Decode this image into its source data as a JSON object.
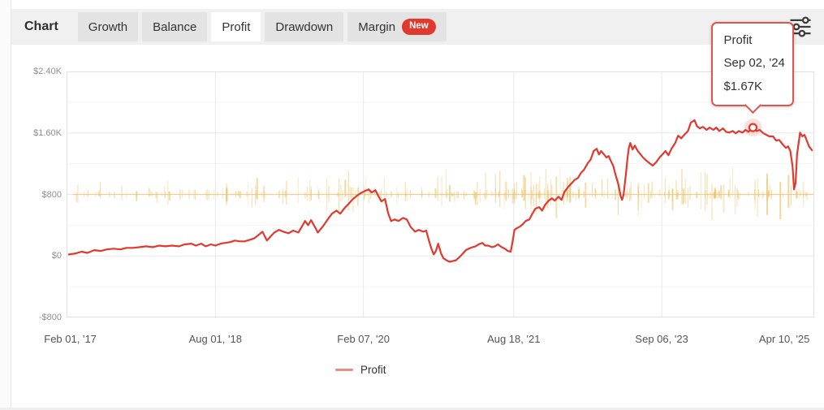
{
  "tabs_bar": {
    "section_label": "Chart",
    "tabs": [
      {
        "label": "Growth",
        "active": false
      },
      {
        "label": "Balance",
        "active": false
      },
      {
        "label": "Profit",
        "active": true
      },
      {
        "label": "Drawdown",
        "active": false
      },
      {
        "label": "Margin",
        "active": false,
        "badge": "New"
      }
    ]
  },
  "tooltip": {
    "series_label": "Profit",
    "date": "Sep 02, '24",
    "value": "$1.67K"
  },
  "legend": {
    "label": "Profit",
    "swatch_color": "#ef8a80"
  },
  "colors": {
    "line": "#e0392e",
    "tooltip_border": "#dc564e",
    "badge_bg": "#e0392e",
    "tab_bar_bg": "#f0f0f0",
    "tab_bg": "#e3e3e3",
    "tab_active_bg": "#ffffff",
    "grid_major": "#e8e8e8",
    "grid_minor": "#f4f4f4",
    "plot_border": "#e2e2e2",
    "volume_bars": "#e9be5f",
    "baseline_peach": "#f2c478",
    "icon": "#3c3c3c"
  },
  "chart_data": {
    "type": "line",
    "title": "",
    "xlabel": "",
    "ylabel": "",
    "ylim": [
      -800,
      2400
    ],
    "grid": true,
    "legend_position": "bottom",
    "y_ticks": [
      {
        "label": "$2.40K",
        "value": 2400
      },
      {
        "label": "$1.60K",
        "value": 1600
      },
      {
        "label": "$800",
        "value": 800
      },
      {
        "label": "$0",
        "value": 0
      },
      {
        "label": "-$800",
        "value": -800
      }
    ],
    "y_minor": [
      2000,
      1200,
      400,
      -400
    ],
    "x_ticks": [
      {
        "label": "Feb 01, '17",
        "pos": 0.005
      },
      {
        "label": "Aug 01, '18",
        "pos": 0.199
      },
      {
        "label": "Feb 07, '20",
        "pos": 0.397
      },
      {
        "label": "Aug 18, '21",
        "pos": 0.598
      },
      {
        "label": "Sep 06, '23",
        "pos": 0.796
      },
      {
        "label": "Apr 10, '25",
        "pos": 0.96
      }
    ],
    "x_grid": [
      0.199,
      0.397,
      0.598,
      0.796
    ],
    "marker": {
      "x": 0.918,
      "value": 1670,
      "date": "Sep 02, '24",
      "display": "$1.67K"
    },
    "series": [
      {
        "name": "Profit",
        "color": "#e0392e",
        "points": [
          [
            0.003,
            20
          ],
          [
            0.011,
            30
          ],
          [
            0.02,
            55
          ],
          [
            0.028,
            40
          ],
          [
            0.037,
            75
          ],
          [
            0.046,
            65
          ],
          [
            0.054,
            85
          ],
          [
            0.063,
            95
          ],
          [
            0.072,
            85
          ],
          [
            0.08,
            105
          ],
          [
            0.089,
            105
          ],
          [
            0.098,
            115
          ],
          [
            0.106,
            125
          ],
          [
            0.115,
            115
          ],
          [
            0.124,
            135
          ],
          [
            0.132,
            125
          ],
          [
            0.141,
            135
          ],
          [
            0.15,
            125
          ],
          [
            0.158,
            150
          ],
          [
            0.167,
            160
          ],
          [
            0.173,
            135
          ],
          [
            0.18,
            160
          ],
          [
            0.186,
            125
          ],
          [
            0.193,
            150
          ],
          [
            0.199,
            135
          ],
          [
            0.206,
            160
          ],
          [
            0.212,
            170
          ],
          [
            0.219,
            180
          ],
          [
            0.225,
            200
          ],
          [
            0.232,
            190
          ],
          [
            0.238,
            190
          ],
          [
            0.245,
            210
          ],
          [
            0.251,
            230
          ],
          [
            0.257,
            275
          ],
          [
            0.262,
            315
          ],
          [
            0.268,
            200
          ],
          [
            0.273,
            255
          ],
          [
            0.278,
            305
          ],
          [
            0.284,
            340
          ],
          [
            0.29,
            315
          ],
          [
            0.297,
            295
          ],
          [
            0.303,
            330
          ],
          [
            0.31,
            305
          ],
          [
            0.314,
            370
          ],
          [
            0.319,
            455
          ],
          [
            0.323,
            400
          ],
          [
            0.327,
            465
          ],
          [
            0.332,
            380
          ],
          [
            0.336,
            305
          ],
          [
            0.34,
            350
          ],
          [
            0.344,
            400
          ],
          [
            0.35,
            485
          ],
          [
            0.355,
            550
          ],
          [
            0.361,
            590
          ],
          [
            0.366,
            550
          ],
          [
            0.372,
            625
          ],
          [
            0.377,
            675
          ],
          [
            0.382,
            730
          ],
          [
            0.388,
            780
          ],
          [
            0.393,
            815
          ],
          [
            0.399,
            845
          ],
          [
            0.404,
            865
          ],
          [
            0.408,
            825
          ],
          [
            0.413,
            855
          ],
          [
            0.417,
            780
          ],
          [
            0.421,
            710
          ],
          [
            0.426,
            740
          ],
          [
            0.43,
            560
          ],
          [
            0.434,
            455
          ],
          [
            0.439,
            475
          ],
          [
            0.444,
            455
          ],
          [
            0.45,
            495
          ],
          [
            0.455,
            475
          ],
          [
            0.46,
            380
          ],
          [
            0.466,
            315
          ],
          [
            0.471,
            340
          ],
          [
            0.477,
            315
          ],
          [
            0.481,
            330
          ],
          [
            0.484,
            220
          ],
          [
            0.488,
            95
          ],
          [
            0.491,
            20
          ],
          [
            0.494,
            65
          ],
          [
            0.497,
            160
          ],
          [
            0.501,
            30
          ],
          [
            0.504,
            -30
          ],
          [
            0.508,
            -55
          ],
          [
            0.512,
            -75
          ],
          [
            0.517,
            -65
          ],
          [
            0.521,
            -55
          ],
          [
            0.525,
            -20
          ],
          [
            0.53,
            30
          ],
          [
            0.534,
            75
          ],
          [
            0.538,
            95
          ],
          [
            0.543,
            115
          ],
          [
            0.547,
            125
          ],
          [
            0.551,
            150
          ],
          [
            0.556,
            170
          ],
          [
            0.56,
            135
          ],
          [
            0.564,
            135
          ],
          [
            0.569,
            115
          ],
          [
            0.573,
            125
          ],
          [
            0.577,
            150
          ],
          [
            0.582,
            115
          ],
          [
            0.586,
            95
          ],
          [
            0.59,
            65
          ],
          [
            0.594,
            55
          ],
          [
            0.597,
            210
          ],
          [
            0.599,
            340
          ],
          [
            0.602,
            360
          ],
          [
            0.606,
            380
          ],
          [
            0.61,
            410
          ],
          [
            0.614,
            455
          ],
          [
            0.619,
            475
          ],
          [
            0.623,
            550
          ],
          [
            0.627,
            615
          ],
          [
            0.632,
            635
          ],
          [
            0.636,
            590
          ],
          [
            0.64,
            665
          ],
          [
            0.645,
            720
          ],
          [
            0.649,
            750
          ],
          [
            0.653,
            720
          ],
          [
            0.658,
            770
          ],
          [
            0.662,
            730
          ],
          [
            0.666,
            835
          ],
          [
            0.671,
            900
          ],
          [
            0.675,
            940
          ],
          [
            0.679,
            985
          ],
          [
            0.684,
            1015
          ],
          [
            0.688,
            1080
          ],
          [
            0.692,
            1120
          ],
          [
            0.697,
            1205
          ],
          [
            0.701,
            1255
          ],
          [
            0.705,
            1365
          ],
          [
            0.709,
            1395
          ],
          [
            0.712,
            1320
          ],
          [
            0.715,
            1365
          ],
          [
            0.718,
            1330
          ],
          [
            0.722,
            1280
          ],
          [
            0.725,
            1300
          ],
          [
            0.728,
            1235
          ],
          [
            0.731,
            1175
          ],
          [
            0.734,
            1065
          ],
          [
            0.738,
            930
          ],
          [
            0.741,
            780
          ],
          [
            0.743,
            730
          ],
          [
            0.745,
            795
          ],
          [
            0.748,
            1055
          ],
          [
            0.75,
            1255
          ],
          [
            0.752,
            1405
          ],
          [
            0.754,
            1470
          ],
          [
            0.757,
            1385
          ],
          [
            0.76,
            1435
          ],
          [
            0.764,
            1365
          ],
          [
            0.767,
            1330
          ],
          [
            0.771,
            1280
          ],
          [
            0.776,
            1235
          ],
          [
            0.78,
            1205
          ],
          [
            0.784,
            1175
          ],
          [
            0.789,
            1225
          ],
          [
            0.793,
            1280
          ],
          [
            0.796,
            1310
          ],
          [
            0.801,
            1365
          ],
          [
            0.805,
            1310
          ],
          [
            0.809,
            1395
          ],
          [
            0.814,
            1470
          ],
          [
            0.818,
            1565
          ],
          [
            0.822,
            1530
          ],
          [
            0.827,
            1585
          ],
          [
            0.831,
            1625
          ],
          [
            0.835,
            1735
          ],
          [
            0.84,
            1765
          ],
          [
            0.843,
            1690
          ],
          [
            0.847,
            1660
          ],
          [
            0.851,
            1680
          ],
          [
            0.856,
            1640
          ],
          [
            0.86,
            1670
          ],
          [
            0.865,
            1640
          ],
          [
            0.869,
            1670
          ],
          [
            0.873,
            1625
          ],
          [
            0.878,
            1660
          ],
          [
            0.882,
            1615
          ],
          [
            0.886,
            1605
          ],
          [
            0.891,
            1625
          ],
          [
            0.895,
            1595
          ],
          [
            0.899,
            1625
          ],
          [
            0.904,
            1605
          ],
          [
            0.908,
            1640
          ],
          [
            0.912,
            1615
          ],
          [
            0.918,
            1670
          ],
          [
            0.923,
            1625
          ],
          [
            0.927,
            1640
          ],
          [
            0.932,
            1595
          ],
          [
            0.936,
            1575
          ],
          [
            0.94,
            1555
          ],
          [
            0.945,
            1555
          ],
          [
            0.949,
            1500
          ],
          [
            0.953,
            1510
          ],
          [
            0.958,
            1450
          ],
          [
            0.962,
            1405
          ],
          [
            0.965,
            1425
          ],
          [
            0.968,
            1365
          ],
          [
            0.971,
            1165
          ],
          [
            0.973,
            865
          ],
          [
            0.975,
            950
          ],
          [
            0.977,
            1320
          ],
          [
            0.981,
            1605
          ],
          [
            0.984,
            1555
          ],
          [
            0.987,
            1575
          ],
          [
            0.99,
            1500
          ],
          [
            0.993,
            1425
          ],
          [
            0.997,
            1375
          ]
        ]
      }
    ]
  },
  "background_bars": {
    "baseline_value": 800,
    "count": 300,
    "seed": 7
  }
}
